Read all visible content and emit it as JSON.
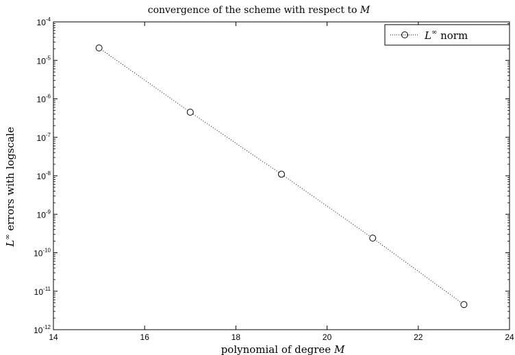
{
  "chart_data": {
    "type": "line",
    "title_prefix": "convergence of the scheme with respect to ",
    "title_var": "M",
    "xlabel_prefix": "polynomial of degree ",
    "xlabel_var": "M",
    "ylabel_var": "L",
    "ylabel_sup": "∞",
    "ylabel_suffix": " errors with logscale",
    "x_scale": "linear",
    "y_scale": "log",
    "xlim": [
      14,
      24
    ],
    "ylim": [
      1e-12,
      0.0001
    ],
    "x_ticks": [
      14,
      16,
      18,
      20,
      22,
      24
    ],
    "y_ticks": [
      {
        "mant": "10",
        "exp": "-12"
      },
      {
        "mant": "10",
        "exp": "-11"
      },
      {
        "mant": "10",
        "exp": "-10"
      },
      {
        "mant": "10",
        "exp": "-9"
      },
      {
        "mant": "10",
        "exp": "-8"
      },
      {
        "mant": "10",
        "exp": "-7"
      },
      {
        "mant": "10",
        "exp": "-6"
      },
      {
        "mant": "10",
        "exp": "-5"
      },
      {
        "mant": "10",
        "exp": "-4"
      }
    ],
    "grid": false,
    "legend_position": "top-right",
    "series": [
      {
        "legend_var": "L",
        "legend_sup": "∞",
        "legend_suffix": " norm",
        "marker": "open-circle",
        "line_style": "dotted",
        "color": "#000000",
        "x": [
          15,
          17,
          19,
          21,
          23
        ],
        "y": [
          2.1e-05,
          4.5e-07,
          1.1e-08,
          2.4e-10,
          4.5e-12
        ]
      }
    ]
  }
}
